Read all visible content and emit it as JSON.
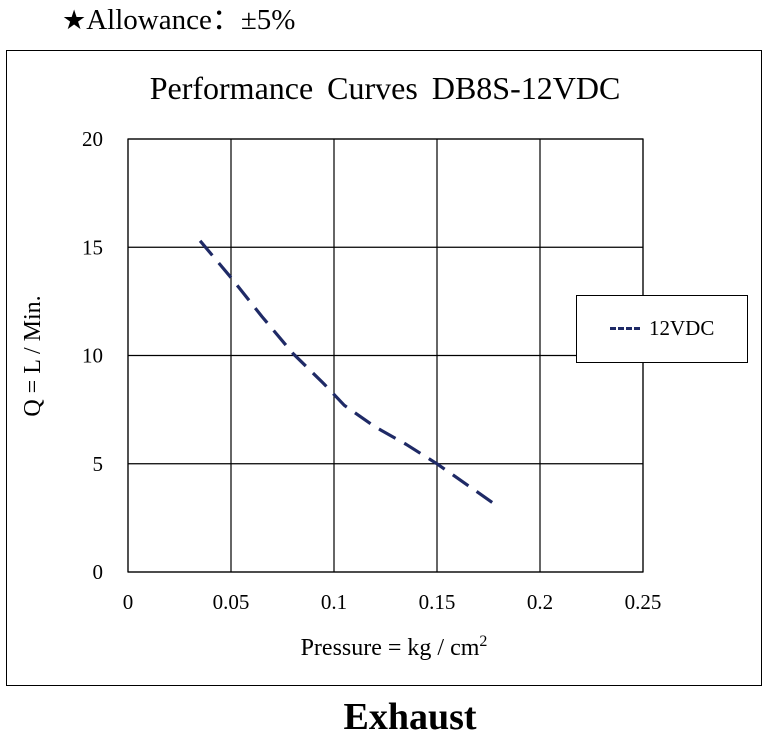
{
  "header": {
    "star": "★",
    "allowance": "Allowance：±5%"
  },
  "caption": "Exhaust",
  "chart_data": {
    "type": "line",
    "title": "Performance  Curves  DB8S-12VDC",
    "xlabel": "Pressure = kg / cm",
    "xlabel_superscript": "2",
    "ylabel": "Q = L / Min.",
    "xlim": [
      0,
      0.25
    ],
    "ylim": [
      0,
      20
    ],
    "x_ticks": [
      "0",
      "0.05",
      "0.1",
      "0.15",
      "0.2",
      "0.25"
    ],
    "y_ticks": [
      "0",
      "5",
      "10",
      "15",
      "20"
    ],
    "grid": true,
    "legend_position": "right",
    "series": [
      {
        "name": "12VDC",
        "color": "#1f2a66",
        "style": "dashed",
        "x": [
          0.035,
          0.05,
          0.065,
          0.08,
          0.095,
          0.105,
          0.12,
          0.135,
          0.15,
          0.165,
          0.177
        ],
        "y": [
          15.3,
          13.6,
          11.8,
          10.1,
          8.7,
          7.7,
          6.7,
          5.9,
          5.0,
          4.0,
          3.2
        ]
      }
    ]
  }
}
